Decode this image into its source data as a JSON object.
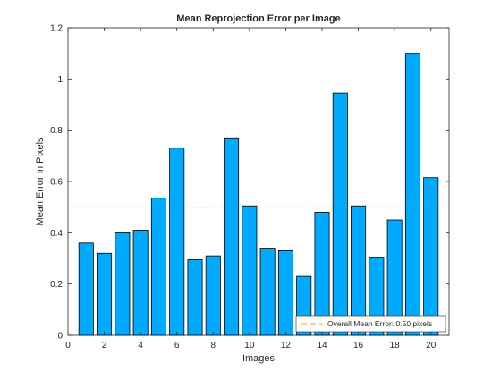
{
  "chart_data": {
    "type": "bar",
    "title": "Mean Reprojection Error per Image",
    "xlabel": "Images",
    "ylabel": "Mean Error in Pixels",
    "categories": [
      1,
      2,
      3,
      4,
      5,
      6,
      7,
      8,
      9,
      10,
      11,
      12,
      13,
      14,
      15,
      16,
      17,
      18,
      19,
      20
    ],
    "values": [
      0.36,
      0.32,
      0.4,
      0.41,
      0.535,
      0.73,
      0.295,
      0.31,
      0.77,
      0.505,
      0.34,
      0.33,
      0.23,
      0.48,
      0.945,
      0.505,
      0.305,
      0.45,
      1.1,
      0.615
    ],
    "xlim": [
      0,
      21
    ],
    "ylim": [
      0,
      1.2
    ],
    "xticks": [
      "0",
      "2",
      "4",
      "6",
      "8",
      "10",
      "12",
      "14",
      "16",
      "18",
      "20"
    ],
    "yticks": [
      "0",
      "0.2",
      "0.4",
      "0.6",
      "0.8",
      "1",
      "1.2"
    ],
    "mean_line": {
      "value": 0.5,
      "label": "Overall Mean Error: 0.50 pixels"
    },
    "legend_position": "bottom-right",
    "grid": false,
    "colors": {
      "bar": "#00AAFF",
      "bar_edge": "#000000",
      "mean_line": "#EDB120",
      "axes": "#262626"
    }
  }
}
